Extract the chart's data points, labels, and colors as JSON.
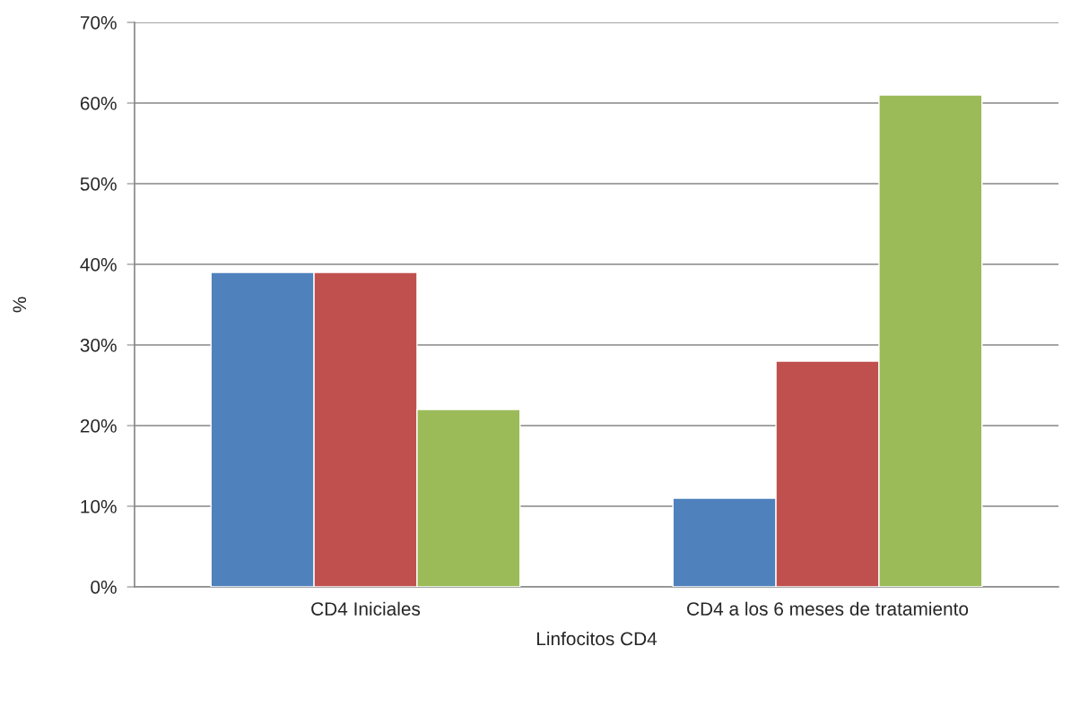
{
  "chart_data": {
    "type": "bar",
    "xlabel": "Linfocitos CD4",
    "ylabel": "%",
    "categories": [
      "CD4 Iniciales",
      "CD4 a los 6 meses de tratamiento"
    ],
    "series": [
      {
        "color": "#4f81bd",
        "values": [
          39,
          11
        ]
      },
      {
        "color": "#c0504d",
        "values": [
          39,
          28
        ]
      },
      {
        "color": "#9bbb59",
        "values": [
          22,
          61
        ]
      }
    ],
    "ylim": [
      0,
      70
    ],
    "yticks": [
      {
        "value": 0,
        "label": "0%"
      },
      {
        "value": 10,
        "label": "10%"
      },
      {
        "value": 20,
        "label": "20%"
      },
      {
        "value": 30,
        "label": "30%"
      },
      {
        "value": 40,
        "label": "40%"
      },
      {
        "value": 50,
        "label": "50%"
      },
      {
        "value": 60,
        "label": "60%"
      },
      {
        "value": 70,
        "label": "70%"
      }
    ],
    "grid": "y"
  }
}
